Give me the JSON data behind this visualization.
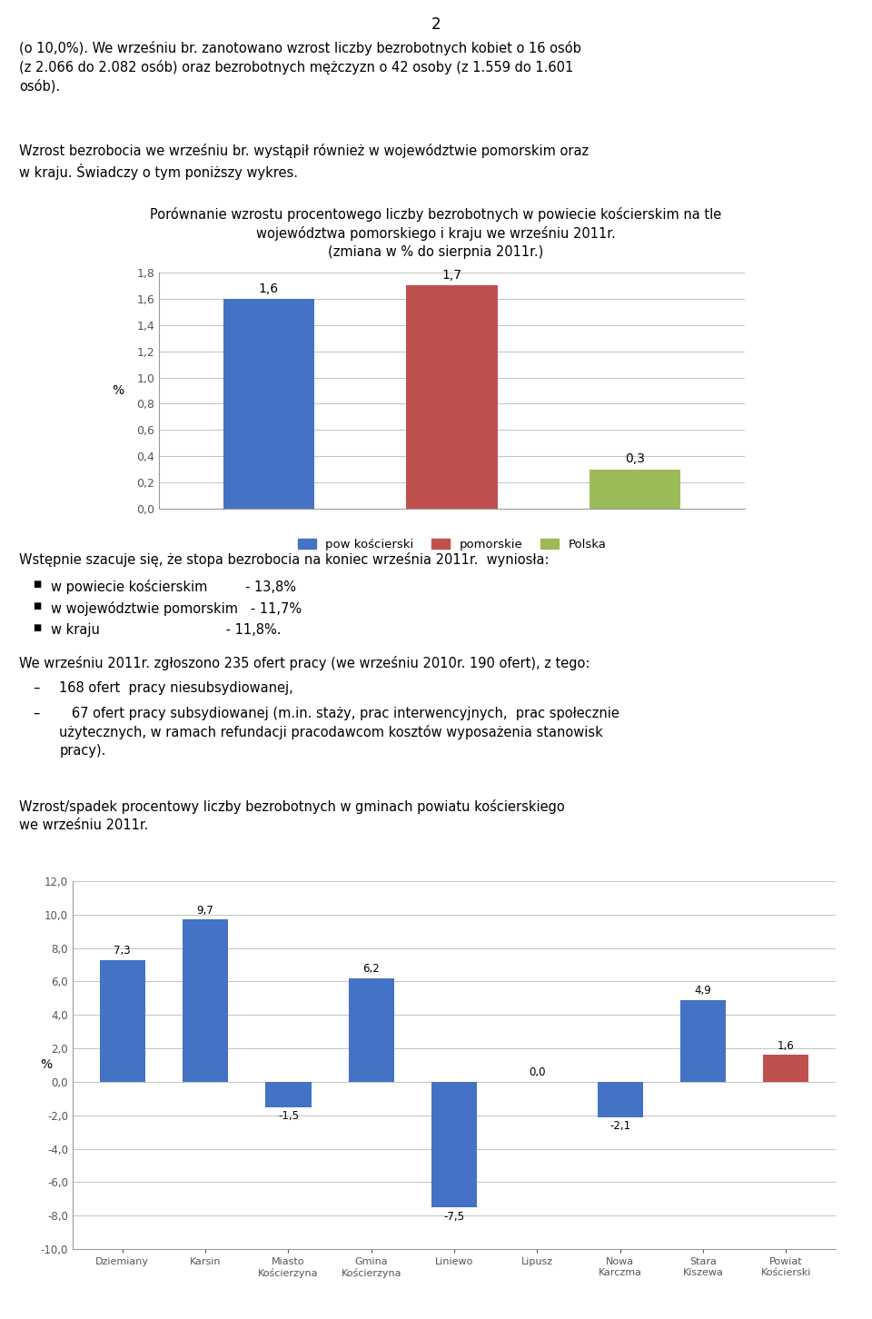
{
  "page_number": "2",
  "chart1": {
    "title_line1": "Porównanie wzrostu procentowego liczby bezrobotnych w powiecie kościerskim na tle",
    "title_line2": "województwa pomorskiego i kraju we wrześniu 2011r.",
    "title_line3": "(zmiana w % do sierpnia 2011r.)",
    "categories": [
      "pow kościerski",
      "pomorskie",
      "Polska"
    ],
    "values": [
      1.6,
      1.7,
      0.3
    ],
    "bar_colors": [
      "#4472C4",
      "#C0504D",
      "#9BBB59"
    ],
    "ylabel": "%",
    "ylim": [
      0.0,
      1.8
    ],
    "yticks": [
      0.0,
      0.2,
      0.4,
      0.6,
      0.8,
      1.0,
      1.2,
      1.4,
      1.6,
      1.8
    ],
    "ytick_labels": [
      "0,0",
      "0,2",
      "0,4",
      "0,6",
      "0,8",
      "1,0",
      "1,2",
      "1,4",
      "1,6",
      "1,8"
    ],
    "bar_labels": [
      "1,6",
      "1,7",
      "0,3"
    ],
    "legend_labels": [
      "pow kościerski",
      "pomorskie",
      "Polska"
    ]
  },
  "chart2": {
    "categories": [
      "Dziemiany",
      "Karsin",
      "Miasto\nKościerzyna",
      "Gmina\nKościerzyna",
      "Liniewo",
      "Lipusz",
      "Nowa\nKarczma",
      "Stara\nKiszewa",
      "Powiat\nKościerski"
    ],
    "values": [
      7.3,
      9.7,
      -1.5,
      6.2,
      -7.5,
      0.0,
      -2.1,
      4.9,
      1.6
    ],
    "bar_colors": [
      "#4472C4",
      "#4472C4",
      "#4472C4",
      "#4472C4",
      "#4472C4",
      "#4472C4",
      "#4472C4",
      "#4472C4",
      "#C0504D"
    ],
    "ylabel": "%",
    "ylim": [
      -10.0,
      12.0
    ],
    "yticks": [
      -10.0,
      -8.0,
      -6.0,
      -4.0,
      -2.0,
      0.0,
      2.0,
      4.0,
      6.0,
      8.0,
      10.0,
      12.0
    ],
    "ytick_labels": [
      "-10,0",
      "-8,0",
      "-6,0",
      "-4,0",
      "-2,0",
      "0,0",
      "2,0",
      "4,0",
      "6,0",
      "8,0",
      "10,0",
      "12,0"
    ],
    "bar_labels": [
      "7,3",
      "9,7",
      "-1,5",
      "6,2",
      "-7,5",
      "0,0",
      "-2,1",
      "4,9",
      "1,6"
    ]
  },
  "background_color": "#FFFFFF",
  "text_color": "#000000"
}
